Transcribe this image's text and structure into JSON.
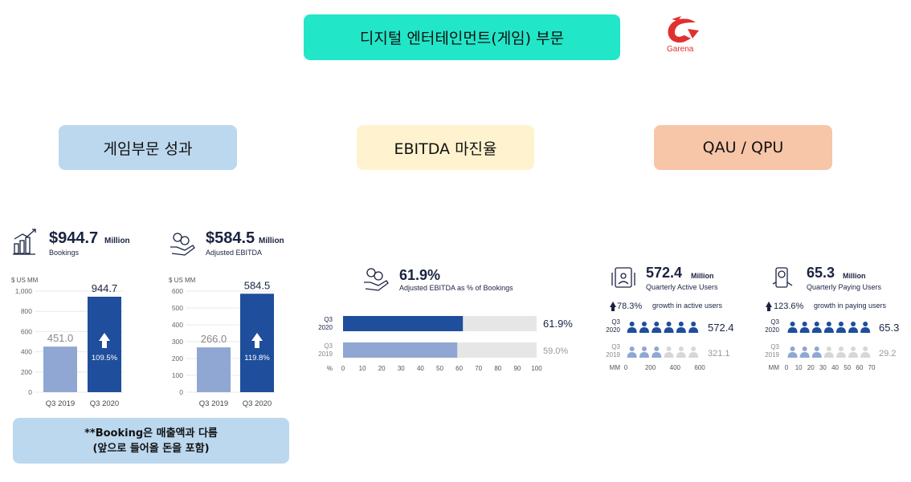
{
  "header": {
    "title": "디지털 엔터테인먼트(게임) 부문",
    "logo_text": "Garena"
  },
  "sections": {
    "performance": "게임부문 성과",
    "ebitda_margin": "EBITDA 마진율",
    "qau_qpu": "QAU / QPU"
  },
  "note": {
    "line1": "**Booking은 매출액과 다름",
    "line2": "(앞으로 들어올 돈을 포함)"
  },
  "colors": {
    "dark_blue": "#1e4e9c",
    "light_blue": "#8fa7d2",
    "grey_track": "#e6e6e6",
    "grey_icon": "#d7d7d7",
    "title_bg": "#22e6c8",
    "red_logo": "#e03030"
  },
  "kpis": {
    "bookings": {
      "value": "$944.7",
      "unit": "Million",
      "label": "Bookings",
      "icon": "growth-chart-icon"
    },
    "adj_ebitda": {
      "value": "$584.5",
      "unit": "Million",
      "label": "Adjusted EBITDA",
      "icon": "money-hand-icon"
    },
    "margin": {
      "value": "61.9%",
      "label": "Adjusted EBITDA as % of Bookings",
      "icon": "money-hand-icon"
    },
    "qau": {
      "value": "572.4",
      "unit": "Million",
      "label": "Quarterly Active Users",
      "growth_value": "78.3%",
      "growth_text": "growth in active users",
      "icon": "tablet-users-icon"
    },
    "qpu": {
      "value": "65.3",
      "unit": "Million",
      "label": "Quarterly Paying Users",
      "growth_value": "123.6%",
      "growth_text": "growth in paying users",
      "icon": "phone-payment-icon"
    }
  },
  "chart_data": [
    {
      "type": "bar",
      "title": "Bookings",
      "ylabel": "$ US MM",
      "categories": [
        "Q3 2019",
        "Q3 2020"
      ],
      "values": [
        451.0,
        944.7
      ],
      "value_labels": [
        "451.0",
        "944.7"
      ],
      "yticks": [
        "0",
        "200",
        "400",
        "600",
        "800",
        "1,000"
      ],
      "ylim": [
        0,
        1000
      ],
      "growth_label": "109.5%"
    },
    {
      "type": "bar",
      "title": "Adjusted EBITDA",
      "ylabel": "$ US MM",
      "categories": [
        "Q3 2019",
        "Q3 2020"
      ],
      "values": [
        266.0,
        584.5
      ],
      "value_labels": [
        "266.0",
        "584.5"
      ],
      "yticks": [
        "0",
        "100",
        "200",
        "300",
        "400",
        "500",
        "600"
      ],
      "ylim": [
        0,
        600
      ],
      "growth_label": "119.8%"
    },
    {
      "type": "bar",
      "orientation": "horizontal",
      "title": "Adjusted EBITDA as % of Bookings",
      "categories": [
        [
          "Q3",
          "2020"
        ],
        [
          "Q3",
          "2019"
        ]
      ],
      "values": [
        61.9,
        59.0
      ],
      "value_labels": [
        "61.9%",
        "59.0%"
      ],
      "xlabel": "%",
      "xticks": [
        "0",
        "10",
        "20",
        "30",
        "40",
        "50",
        "60",
        "70",
        "80",
        "90",
        "100"
      ],
      "xlim": [
        0,
        100
      ]
    },
    {
      "type": "bar",
      "orientation": "horizontal",
      "style": "pictogram",
      "title": "Quarterly Active Users",
      "categories": [
        [
          "Q3",
          "2020"
        ],
        [
          "Q3",
          "2019"
        ]
      ],
      "values": [
        572.4,
        321.1
      ],
      "value_labels": [
        "572.4",
        "321.1"
      ],
      "xlabel": "MM",
      "xticks": [
        "0",
        "200",
        "400",
        "600"
      ],
      "xlim": [
        0,
        600
      ]
    },
    {
      "type": "bar",
      "orientation": "horizontal",
      "style": "pictogram",
      "title": "Quarterly Paying Users",
      "categories": [
        [
          "Q3",
          "2020"
        ],
        [
          "Q3",
          "2019"
        ]
      ],
      "values": [
        65.3,
        29.2
      ],
      "value_labels": [
        "65.3",
        "29.2"
      ],
      "xlabel": "MM",
      "xticks": [
        "0",
        "10",
        "20",
        "30",
        "40",
        "50",
        "60",
        "70"
      ],
      "xlim": [
        0,
        70
      ]
    }
  ]
}
